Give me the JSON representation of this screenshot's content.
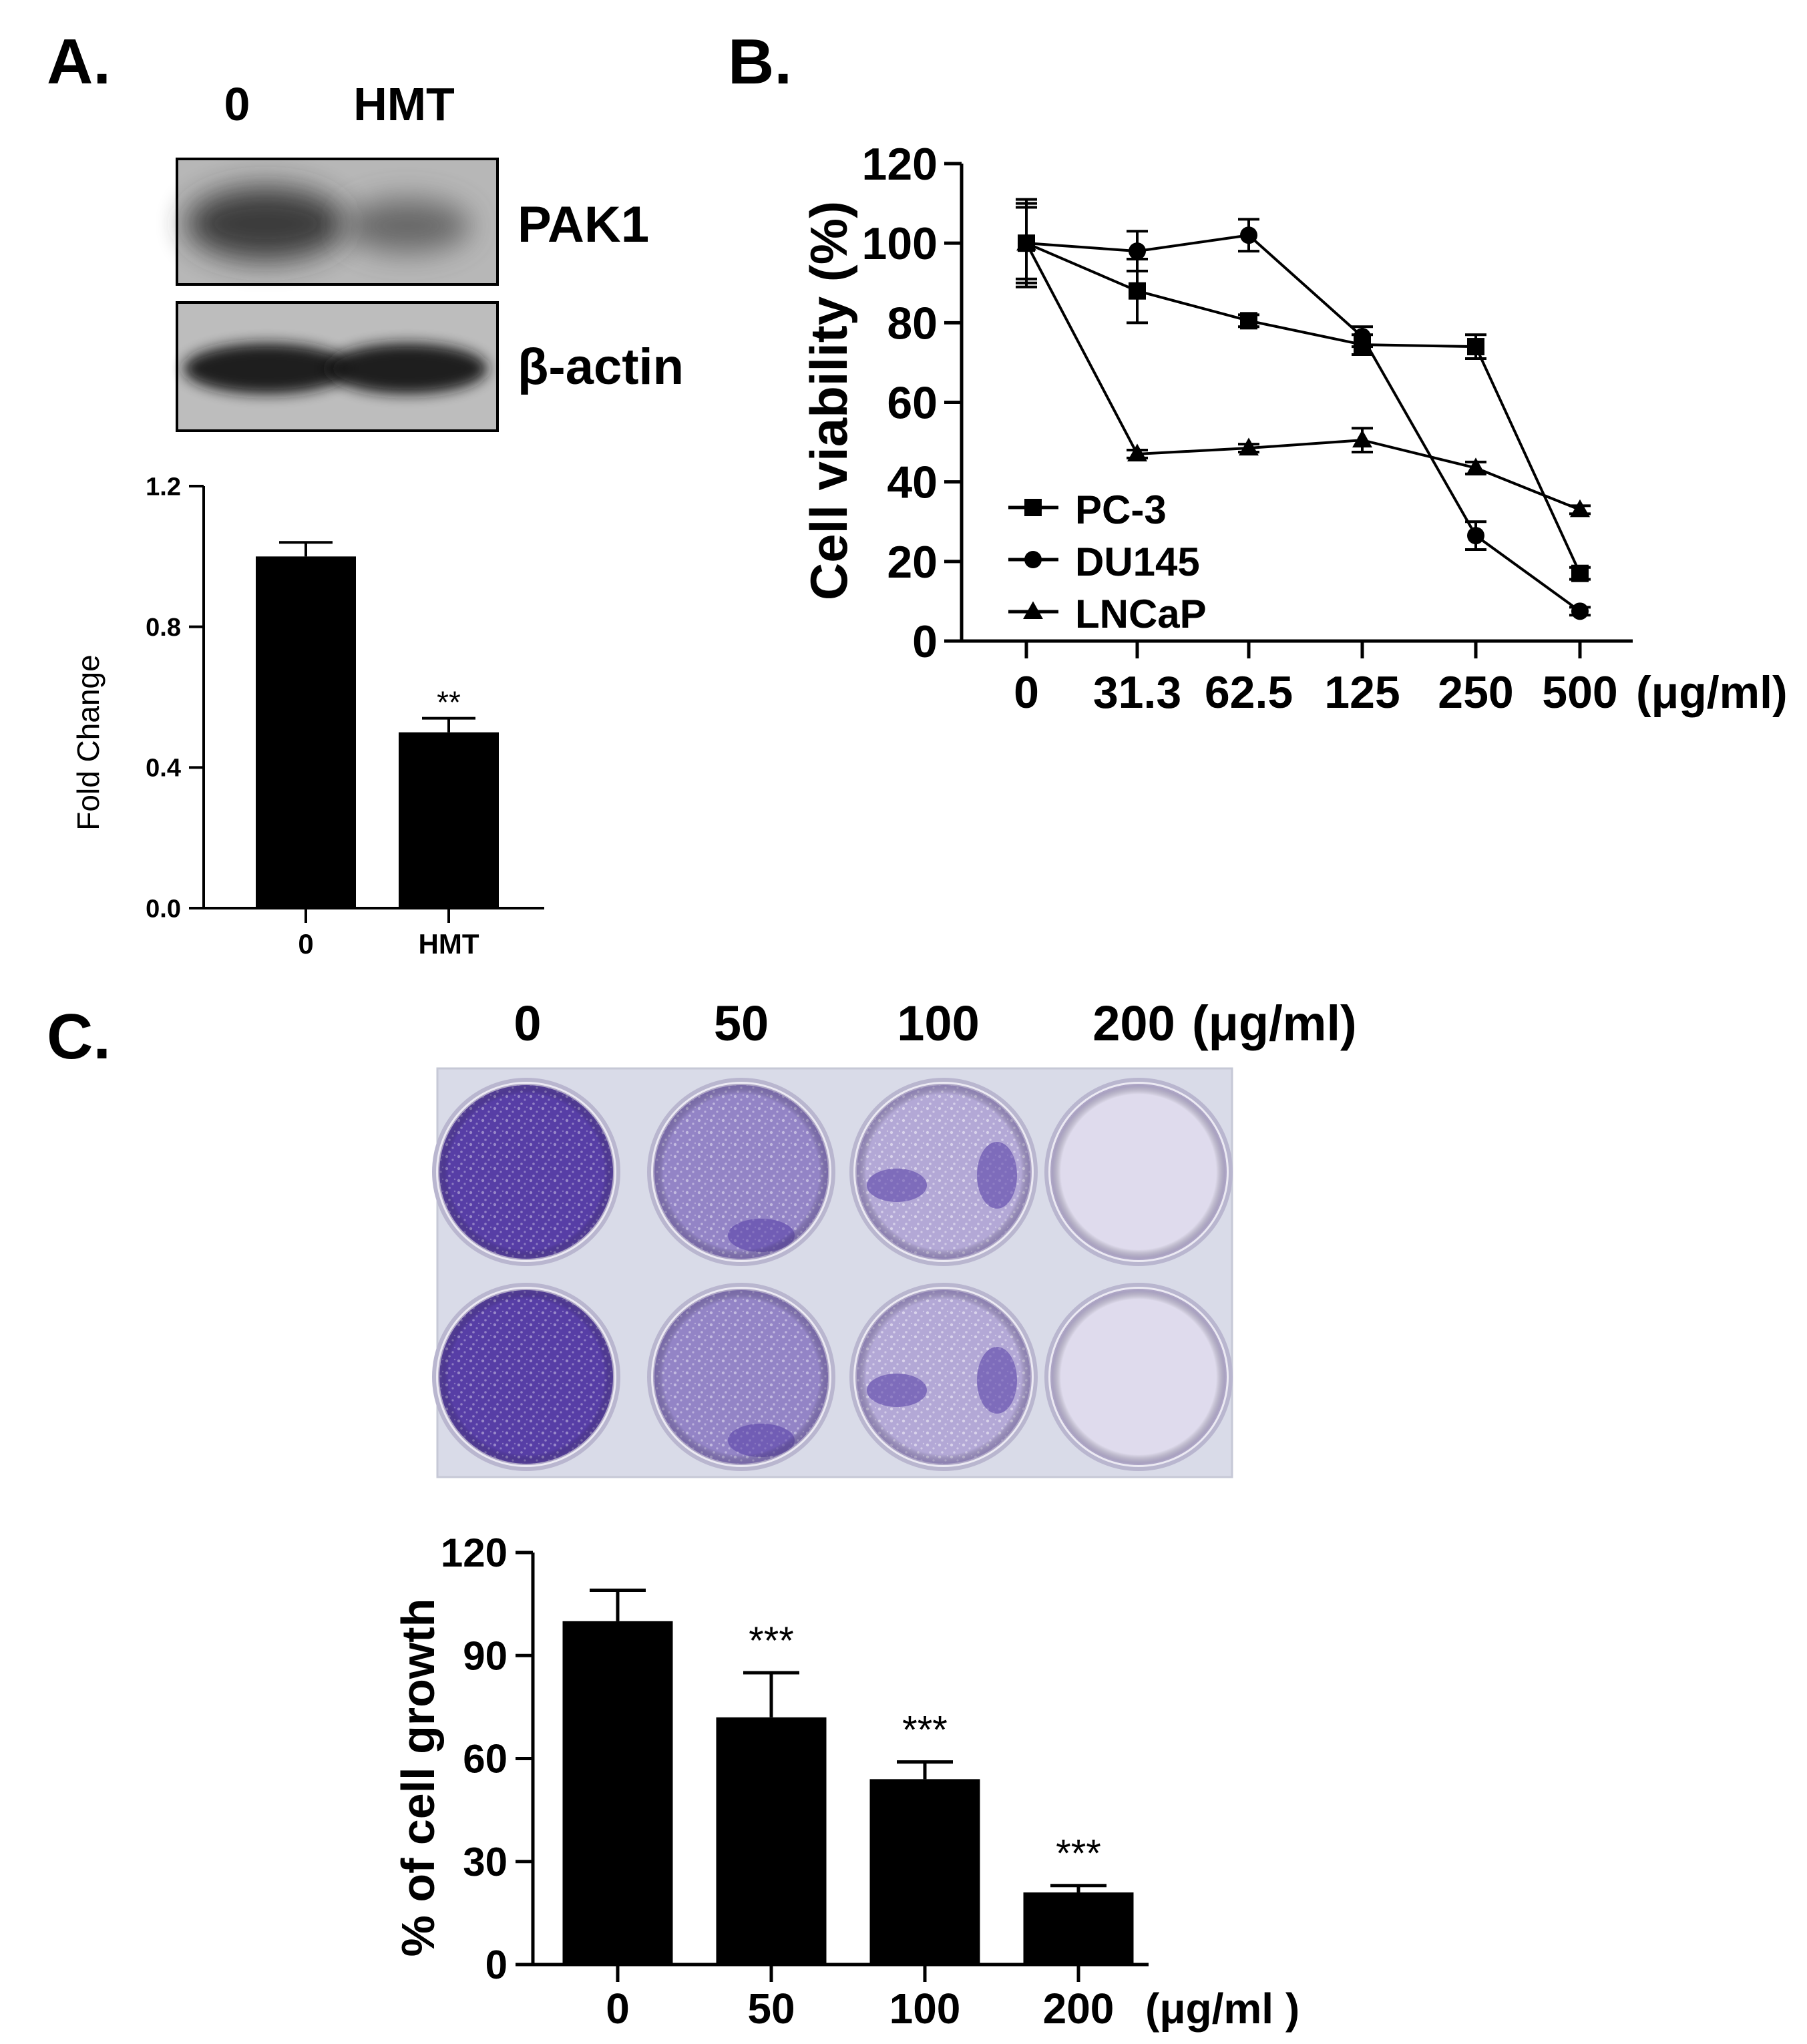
{
  "panels": {
    "a": {
      "letter": "A.",
      "blot": {
        "lane_labels": [
          "0",
          "HMT"
        ],
        "bands": [
          "PAK1",
          "β-actin"
        ]
      }
    },
    "b": {
      "letter": "B."
    },
    "c": {
      "letter": "C.",
      "plate": {
        "doses": [
          "0",
          "50",
          "100",
          "200"
        ],
        "unit_label": "(μg/ml)",
        "stain_color": "#4a2fa0"
      }
    }
  },
  "chart_data": [
    {
      "id": "fold-change",
      "type": "bar",
      "ylabel": "Fold Change",
      "categories": [
        "0",
        "HMT"
      ],
      "values": [
        1.0,
        0.5
      ],
      "errors": [
        0.04,
        0.04
      ],
      "significance": [
        "",
        "**"
      ],
      "ylim": [
        0,
        1.2
      ],
      "yticks": [
        "0.0",
        "0.4",
        "0.8",
        "1.2"
      ],
      "ytick_values": [
        0,
        0.4,
        0.8,
        1.2
      ],
      "bar_color": "#000000"
    },
    {
      "id": "cell-viability",
      "type": "line",
      "ylabel": "Cell viability (%)",
      "x": [
        "0",
        "31.3",
        "62.5",
        "125",
        "250",
        "500"
      ],
      "x_unit": "(μg/ml)",
      "ylim": [
        0,
        120
      ],
      "yticks": [
        "0",
        "20",
        "40",
        "60",
        "80",
        "100",
        "120"
      ],
      "ytick_values": [
        0,
        20,
        40,
        60,
        80,
        100,
        120
      ],
      "legend_position": "bottom-left",
      "series": [
        {
          "name": "PC-3",
          "marker": "square",
          "values": [
            100,
            88,
            80.5,
            74.5,
            74,
            17
          ],
          "errors": [
            11,
            8,
            1.5,
            2.5,
            3,
            1.5
          ]
        },
        {
          "name": "DU145",
          "marker": "circle",
          "values": [
            100,
            98,
            102,
            76.5,
            26.5,
            7.5
          ],
          "errors": [
            9,
            5,
            4,
            2.5,
            3.5,
            1
          ]
        },
        {
          "name": "LNCaP",
          "marker": "triangle",
          "values": [
            100,
            47,
            48.5,
            50.5,
            43.5,
            33
          ],
          "errors": [
            10,
            1,
            1,
            3,
            1.5,
            1
          ]
        }
      ]
    },
    {
      "id": "cell-growth",
      "type": "bar",
      "ylabel": "% of cell growth",
      "categories": [
        "0",
        "50",
        "100",
        "200"
      ],
      "x_unit": "(μg/ml )",
      "values": [
        100,
        72,
        54,
        21
      ],
      "errors": [
        9,
        13,
        5,
        2
      ],
      "significance": [
        "",
        "***",
        "***",
        "***"
      ],
      "ylim": [
        0,
        120
      ],
      "yticks": [
        "0",
        "30",
        "60",
        "90",
        "120"
      ],
      "ytick_values": [
        0,
        30,
        60,
        90,
        120
      ],
      "bar_color": "#000000"
    }
  ]
}
